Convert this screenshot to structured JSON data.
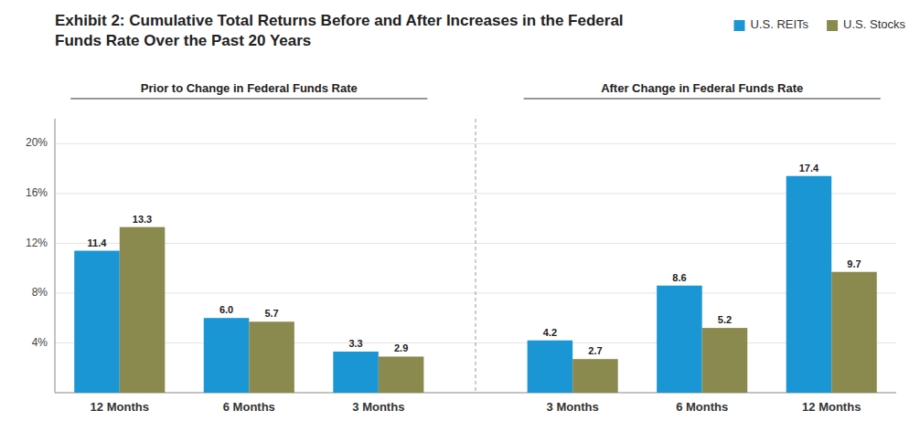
{
  "chart_data": {
    "type": "bar",
    "title": "Exhibit 2: Cumulative Total Returns Before and After Increases in the Federal Funds Rate Over the Past 20 Years",
    "annotations": [
      "Prior to Change in Federal Funds Rate",
      "After Change in Federal Funds Rate"
    ],
    "categories": [
      "12 Months",
      "6 Months",
      "3 Months",
      "3 Months",
      "6 Months",
      "12 Months"
    ],
    "series": [
      {
        "name": "U.S. REITs",
        "color": "#1b96d4",
        "values": [
          11.4,
          6.0,
          3.3,
          4.2,
          8.6,
          17.4
        ],
        "value_labels": [
          "11.4",
          "6.0",
          "3.3",
          "4.2",
          "8.6",
          "17.4"
        ]
      },
      {
        "name": "U.S. Stocks",
        "color": "#8b8a4e",
        "values": [
          13.3,
          5.7,
          2.9,
          2.7,
          5.2,
          9.7
        ],
        "value_labels": [
          "13.3",
          "5.7",
          "2.9",
          "2.7",
          "5.2",
          "9.7"
        ]
      }
    ],
    "ylim": [
      0,
      22
    ],
    "yticks": [
      {
        "value": 4,
        "label": "4%"
      },
      {
        "value": 8,
        "label": "8%"
      },
      {
        "value": 12,
        "label": "12%"
      },
      {
        "value": 16,
        "label": "16%"
      },
      {
        "value": 20,
        "label": "20%"
      }
    ],
    "grid": true,
    "legend": "top-right",
    "data_labels": true
  }
}
